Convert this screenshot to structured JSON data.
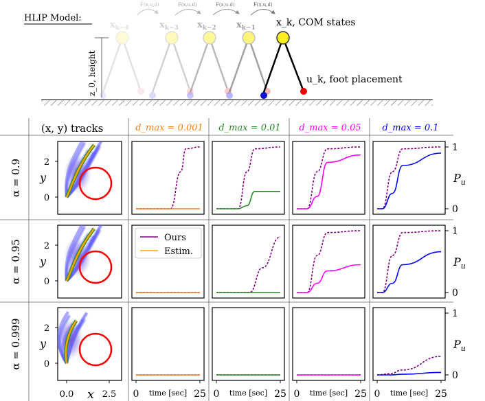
{
  "header": {
    "model_label": "HLIP Model:",
    "height_label": "z_0, height",
    "state_subscripts": [
      "k−4",
      "k−3",
      "k−2",
      "k−1"
    ],
    "transition_label": "F(x,u,d)",
    "current_state_label": "x_k, COM states",
    "foot_label": "u_k, foot placement"
  },
  "grid": {
    "corner_header": "(x, y) tracks",
    "column_headers": [
      "d_max = 0.001",
      "d_max = 0.01",
      "d_max = 0.05",
      "d_max = 0.1"
    ],
    "column_colors": [
      "#ff7f0e",
      "#228b22",
      "#ff00ff",
      "#0000ff"
    ],
    "row_labels": [
      "α = 0.9",
      "α = 0.95",
      "α = 0.999"
    ],
    "right_axis_label": "P_u",
    "right_ticks": [
      "0",
      "1"
    ],
    "track_ticks_y": [
      "0",
      "2"
    ],
    "track_ticks_x": [
      "0.0",
      "2.5"
    ],
    "track_ylabel": "y",
    "track_xlabel": "x",
    "time_label": "time [sec]",
    "time_ticks": [
      "0",
      "25"
    ],
    "legend": {
      "ours": "Ours",
      "estim": "Estim."
    },
    "legend_colors": {
      "ours": "#800080",
      "estim": "#ffa500"
    }
  },
  "chart_data": [
    {
      "type": "line",
      "row": "α = 0.9",
      "column": "d_max = 0.001",
      "x": [
        0,
        13.5,
        17.5,
        19.5,
        25
      ],
      "series": [
        {
          "name": "Ours",
          "style": "dashed",
          "values": [
            0,
            0,
            0.6,
            0.97,
            1.0
          ]
        },
        {
          "name": "Estim.",
          "style": "solid",
          "values": [
            0,
            0,
            0,
            0,
            0
          ]
        }
      ],
      "ylim": [
        0,
        1
      ],
      "xlim": [
        0,
        25
      ]
    },
    {
      "type": "line",
      "row": "α = 0.9",
      "column": "d_max = 0.01",
      "x": [
        0,
        8.5,
        12,
        15,
        25
      ],
      "series": [
        {
          "name": "Ours",
          "style": "dashed",
          "values": [
            0,
            0,
            0.6,
            0.97,
            1.0
          ]
        },
        {
          "name": "Estim.",
          "style": "solid",
          "values": [
            0,
            0,
            0.05,
            0.28,
            0.28
          ]
        }
      ],
      "ylim": [
        0,
        1
      ],
      "xlim": [
        0,
        25
      ]
    },
    {
      "type": "line",
      "row": "α = 0.9",
      "column": "d_max = 0.05",
      "x": [
        0,
        4,
        8,
        12,
        25
      ],
      "series": [
        {
          "name": "Ours",
          "style": "dashed",
          "values": [
            0,
            0,
            0.6,
            0.97,
            1.0
          ]
        },
        {
          "name": "Estim.",
          "style": "solid",
          "values": [
            0,
            0,
            0.2,
            0.75,
            0.87
          ]
        }
      ],
      "ylim": [
        0,
        1
      ],
      "xlim": [
        0,
        25
      ]
    },
    {
      "type": "line",
      "row": "α = 0.9",
      "column": "d_max = 0.1",
      "x": [
        0,
        2,
        6,
        10,
        25
      ],
      "series": [
        {
          "name": "Ours",
          "style": "dashed",
          "values": [
            0,
            0,
            0.6,
            0.97,
            1.0
          ]
        },
        {
          "name": "Estim.",
          "style": "solid",
          "values": [
            0,
            0,
            0.25,
            0.7,
            0.9
          ]
        }
      ],
      "ylim": [
        0,
        1
      ],
      "xlim": [
        0,
        25
      ]
    },
    {
      "type": "line",
      "row": "α = 0.95",
      "column": "d_max = 0.001",
      "x": [
        0,
        25
      ],
      "series": [
        {
          "name": "Ours",
          "style": "dashed",
          "values": [
            0,
            0
          ]
        },
        {
          "name": "Estim.",
          "style": "solid",
          "values": [
            0,
            0
          ]
        }
      ],
      "ylim": [
        0,
        1
      ],
      "xlim": [
        0,
        25
      ]
    },
    {
      "type": "line",
      "row": "α = 0.95",
      "column": "d_max = 0.01",
      "x": [
        0,
        13,
        18,
        25
      ],
      "series": [
        {
          "name": "Ours",
          "style": "dashed",
          "values": [
            0,
            0,
            0.4,
            0.9
          ]
        },
        {
          "name": "Estim.",
          "style": "solid",
          "values": [
            0,
            0,
            0,
            0
          ]
        }
      ],
      "ylim": [
        0,
        1
      ],
      "xlim": [
        0,
        25
      ]
    },
    {
      "type": "line",
      "row": "α = 0.95",
      "column": "d_max = 0.05",
      "x": [
        0,
        4,
        8,
        12,
        25
      ],
      "series": [
        {
          "name": "Ours",
          "style": "dashed",
          "values": [
            0,
            0,
            0.6,
            0.97,
            1.0
          ]
        },
        {
          "name": "Estim.",
          "style": "solid",
          "values": [
            0,
            0,
            0.15,
            0.35,
            0.45
          ]
        }
      ],
      "ylim": [
        0,
        1
      ],
      "xlim": [
        0,
        25
      ]
    },
    {
      "type": "line",
      "row": "α = 0.95",
      "column": "d_max = 0.1",
      "x": [
        0,
        2,
        6,
        10,
        25
      ],
      "series": [
        {
          "name": "Ours",
          "style": "dashed",
          "values": [
            0,
            0,
            0.6,
            0.97,
            1.0
          ]
        },
        {
          "name": "Estim.",
          "style": "solid",
          "values": [
            0,
            0,
            0.15,
            0.45,
            0.66
          ]
        }
      ],
      "ylim": [
        0,
        1
      ],
      "xlim": [
        0,
        25
      ]
    },
    {
      "type": "line",
      "row": "α = 0.999",
      "column": "d_max = 0.001",
      "x": [
        0,
        25
      ],
      "series": [
        {
          "name": "Ours",
          "style": "dashed",
          "values": [
            0,
            0
          ]
        },
        {
          "name": "Estim.",
          "style": "solid",
          "values": [
            0,
            0
          ]
        }
      ],
      "ylim": [
        0,
        1
      ],
      "xlim": [
        0,
        25
      ]
    },
    {
      "type": "line",
      "row": "α = 0.999",
      "column": "d_max = 0.01",
      "x": [
        0,
        25
      ],
      "series": [
        {
          "name": "Ours",
          "style": "dashed",
          "values": [
            0,
            0
          ]
        },
        {
          "name": "Estim.",
          "style": "solid",
          "values": [
            0,
            0
          ]
        }
      ],
      "ylim": [
        0,
        1
      ],
      "xlim": [
        0,
        25
      ]
    },
    {
      "type": "line",
      "row": "α = 0.999",
      "column": "d_max = 0.05",
      "x": [
        0,
        25
      ],
      "series": [
        {
          "name": "Ours",
          "style": "dashed",
          "values": [
            0,
            0
          ]
        },
        {
          "name": "Estim.",
          "style": "solid",
          "values": [
            0,
            0
          ]
        }
      ],
      "ylim": [
        0,
        1
      ],
      "xlim": [
        0,
        25
      ]
    },
    {
      "type": "line",
      "row": "α = 0.999",
      "column": "d_max = 0.1",
      "x": [
        0,
        5,
        10,
        25
      ],
      "series": [
        {
          "name": "Ours",
          "style": "dashed",
          "values": [
            0,
            0.02,
            0.08,
            0.3
          ]
        },
        {
          "name": "Estim.",
          "style": "solid",
          "values": [
            0,
            0,
            0.01,
            0.04
          ]
        }
      ],
      "ylim": [
        0,
        1
      ],
      "xlim": [
        0,
        25
      ]
    }
  ]
}
